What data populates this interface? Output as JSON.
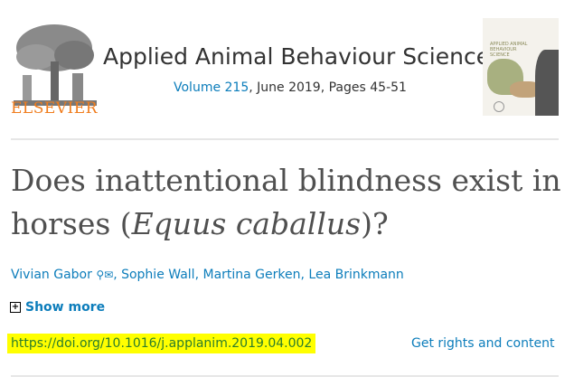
{
  "publisher": {
    "name": "ELSEVIER",
    "color": "#f07c1c"
  },
  "journal": {
    "title": "Applied Animal Behaviour Science",
    "volume_link": "Volume 215",
    "volume_rest": ", June 2019, Pages 45-51",
    "cover_text": "APPLIED ANIMAL BEHAVIOUR SCIENCE"
  },
  "article": {
    "title_pre": "Does inattentional blindness exist in horses (",
    "title_italic": "Equus caballus",
    "title_post": ")?",
    "authors": [
      "Vivian Gabor",
      "Sophie Wall",
      "Martina Gerken",
      "Lea Brinkmann"
    ],
    "show_more": "Show more",
    "doi": "https://doi.org/10.1016/j.applanim.2019.04.002",
    "rights": "Get rights and content"
  },
  "colors": {
    "link": "#0c7dbb",
    "highlight": "#ffff00"
  }
}
